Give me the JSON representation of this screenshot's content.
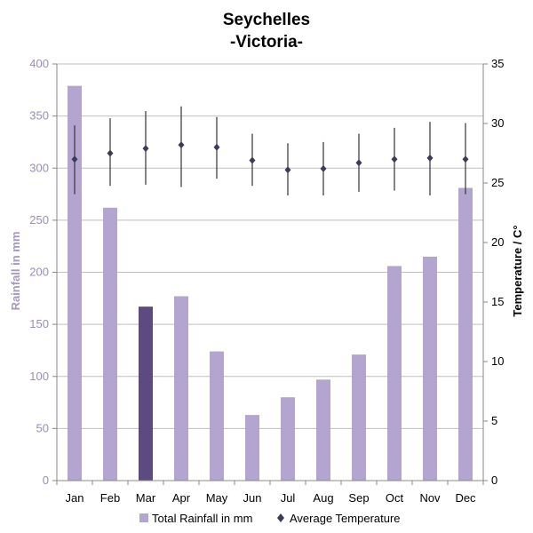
{
  "chart_data": {
    "type": "bar",
    "title": "Seychelles",
    "subtitle": "-Victoria-",
    "categories": [
      "Jan",
      "Feb",
      "Mar",
      "Apr",
      "May",
      "Jun",
      "Jul",
      "Aug",
      "Sep",
      "Oct",
      "Nov",
      "Dec"
    ],
    "series": [
      {
        "name": "Total Rainfall in mm",
        "type": "bar",
        "axis": "left",
        "values": [
          379,
          262,
          167,
          177,
          124,
          63,
          80,
          97,
          121,
          206,
          215,
          281
        ],
        "color": "#b3a5cf",
        "highlight_index": 2,
        "highlight_color": "#5c4a80"
      },
      {
        "name": "Average Temperature",
        "type": "scatter",
        "axis": "right",
        "values": [
          27.0,
          27.5,
          27.9,
          28.2,
          28.0,
          26.9,
          26.1,
          26.2,
          26.7,
          27.0,
          27.1,
          27.0
        ],
        "error_low": [
          24.1,
          24.8,
          24.9,
          24.7,
          25.4,
          24.8,
          24.0,
          24.0,
          24.3,
          24.4,
          24.0,
          24.1
        ],
        "error_high": [
          29.8,
          30.4,
          31.0,
          31.4,
          30.5,
          29.1,
          28.3,
          28.4,
          29.1,
          29.6,
          30.1,
          30.0
        ],
        "color": "#3b3b5c"
      }
    ],
    "ylabel": "Rainfall  in mm",
    "ylabel_right": "Temperature / C°",
    "ylim": [
      0,
      400
    ],
    "ylim_right": [
      0,
      35
    ],
    "yticks": [
      0,
      50,
      100,
      150,
      200,
      250,
      300,
      350,
      400
    ],
    "yticks_right": [
      0,
      5,
      10,
      15,
      20,
      25,
      30,
      35
    ],
    "grid": true,
    "legend_position": "bottom"
  }
}
